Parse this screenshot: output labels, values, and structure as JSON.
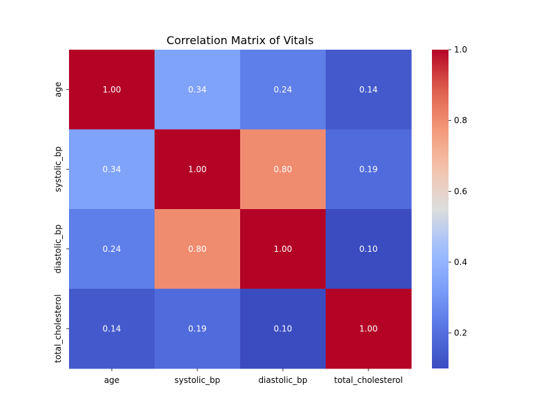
{
  "chart_data": {
    "type": "heatmap",
    "title": "Correlation Matrix of Vitals",
    "x_labels": [
      "age",
      "systolic_bp",
      "diastolic_bp",
      "total_cholesterol"
    ],
    "y_labels": [
      "age",
      "systolic_bp",
      "diastolic_bp",
      "total_cholesterol"
    ],
    "values": [
      [
        1.0,
        0.34,
        0.24,
        0.14
      ],
      [
        0.34,
        1.0,
        0.8,
        0.19
      ],
      [
        0.24,
        0.8,
        1.0,
        0.1
      ],
      [
        0.14,
        0.19,
        0.1,
        1.0
      ]
    ],
    "annotation_format": "0.00",
    "colormap": "coolwarm",
    "vmin": 0.1,
    "vmax": 1.0,
    "colorbar": {
      "ticks": [
        0.2,
        0.4,
        0.6,
        0.8,
        1.0
      ],
      "tick_labels": [
        "0.2",
        "0.4",
        "0.6",
        "0.8",
        "1.0"
      ]
    }
  }
}
